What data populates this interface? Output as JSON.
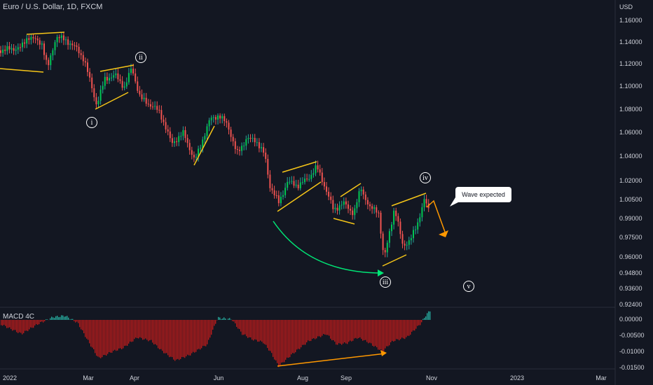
{
  "header": {
    "symbol_title": "Euro / U.S. Dollar, 1D, FXCM",
    "currency": "USD",
    "macd_label": "MACD 4C"
  },
  "price_axis": [
    "1.16000",
    "1.14000",
    "1.12000",
    "1.10000",
    "1.08000",
    "1.06000",
    "1.04000",
    "1.02000",
    "1.00500",
    "0.99000",
    "0.97500",
    "0.96000",
    "0.94800",
    "0.93600",
    "0.92400"
  ],
  "macd_axis": [
    "0.00000",
    "-0.00500",
    "-0.01000",
    "-0.01500"
  ],
  "time_axis": [
    "2022",
    "Mar",
    "Apr",
    "Jun",
    "Aug",
    "Sep",
    "Nov",
    "2023",
    "Mar"
  ],
  "waves": {
    "i": "i",
    "ii": "ii",
    "iii": "iii",
    "iv": "iv",
    "v": "v"
  },
  "annotation": {
    "callout_text": "Wave expected"
  },
  "colors": {
    "background": "#131722",
    "up": "#26a69a",
    "up_bright": "#00c853",
    "down": "#ef5350",
    "macd_down": "#b71c1c",
    "wedge": "#f5c518",
    "arrow_orange": "#ff9800",
    "arrow_green": "#00e676"
  }
}
